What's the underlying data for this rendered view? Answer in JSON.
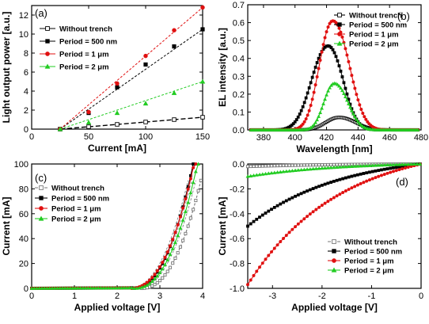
{
  "chart_data": [
    {
      "panel": "(a)",
      "type": "line",
      "xlabel": "Current [mA]",
      "ylabel": "Light output power [a.u.]",
      "xlim": [
        0,
        150
      ],
      "ylim": [
        0,
        13
      ],
      "xticks": [
        0,
        50,
        100,
        150
      ],
      "yticks": [
        0,
        2,
        4,
        6,
        8,
        10,
        12
      ],
      "legend_position": "top-left",
      "x": [
        25,
        50,
        75,
        100,
        125,
        150
      ],
      "series": [
        {
          "name": "Without trench",
          "color": "#000000",
          "marker": "open-square",
          "values": [
            0.0,
            0.25,
            0.5,
            0.75,
            1.0,
            1.25
          ]
        },
        {
          "name": "Period = 500 nm",
          "color": "#000000",
          "marker": "filled-square",
          "values": [
            0.0,
            1.7,
            4.4,
            6.8,
            8.7,
            10.5
          ]
        },
        {
          "name": "Period = 1 μm",
          "color": "#e01010",
          "marker": "filled-circle",
          "values": [
            0.0,
            1.8,
            4.8,
            7.7,
            10.4,
            12.8
          ]
        },
        {
          "name": "Period = 2 μm",
          "color": "#22cc22",
          "marker": "filled-triangle",
          "values": [
            0.0,
            0.7,
            1.7,
            2.7,
            3.8,
            5.0
          ]
        }
      ]
    },
    {
      "panel": "(b)",
      "type": "line",
      "xlabel": "Wavelength [nm]",
      "ylabel": "EL intensity [a.u.]",
      "xlim": [
        370,
        480
      ],
      "ylim": [
        0,
        0.7
      ],
      "xticks": [
        380,
        400,
        420,
        440,
        460,
        480
      ],
      "yticks": [
        0.0,
        0.1,
        0.2,
        0.3,
        0.4,
        0.5,
        0.6,
        0.7
      ],
      "legend_position": "top-right",
      "series": [
        {
          "name": "Without trench",
          "color": "#000000",
          "marker": "open-square",
          "peak_x": 428,
          "peak_y": 0.07,
          "width_left": 9,
          "width_right": 11
        },
        {
          "name": "Period = 500 nm",
          "color": "#000000",
          "marker": "filled-square",
          "peak_x": 421,
          "peak_y": 0.47,
          "width_left": 11,
          "width_right": 10
        },
        {
          "name": "Period = 1 μm",
          "color": "#e01010",
          "marker": "filled-circle",
          "peak_x": 424,
          "peak_y": 0.61,
          "width_left": 9,
          "width_right": 11
        },
        {
          "name": "Period = 2 μm",
          "color": "#22cc22",
          "marker": "filled-triangle",
          "peak_x": 425,
          "peak_y": 0.26,
          "width_left": 7,
          "width_right": 9
        }
      ]
    },
    {
      "panel": "(c)",
      "type": "line",
      "xlabel": "Applied voltage [V]",
      "ylabel": "Current [mA]",
      "xlim": [
        0,
        4
      ],
      "ylim": [
        0,
        100
      ],
      "xticks": [
        0,
        1,
        2,
        3,
        4
      ],
      "yticks": [
        0,
        20,
        40,
        60,
        80,
        100
      ],
      "legend_position": "top-left",
      "series": [
        {
          "name": "Without trench",
          "color": "#777777",
          "marker": "open-square",
          "dashed": true,
          "onset_voltage": 2.55,
          "full_current_voltage": 4.05
        },
        {
          "name": "Period = 500 nm",
          "color": "#000000",
          "marker": "filled-square",
          "onset_voltage": 2.35,
          "full_current_voltage": 3.78
        },
        {
          "name": "Period = 1 μm",
          "color": "#e01010",
          "marker": "filled-circle",
          "onset_voltage": 2.3,
          "full_current_voltage": 3.8
        },
        {
          "name": "Period = 2 μm",
          "color": "#22cc22",
          "marker": "filled-triangle",
          "onset_voltage": 2.4,
          "full_current_voltage": 3.88
        }
      ]
    },
    {
      "panel": "(d)",
      "type": "line",
      "xlabel": "Applied voltage [V]",
      "ylabel": "Current [mA]",
      "xlim": [
        -3.5,
        0
      ],
      "ylim": [
        -1.0,
        0
      ],
      "xticks": [
        -3,
        -2,
        -1,
        0
      ],
      "yticks": [
        -1.0,
        -0.8,
        -0.6,
        -0.4,
        -0.2,
        0.0
      ],
      "legend_position": "bottom-right",
      "series": [
        {
          "name": "Without trench",
          "color": "#777777",
          "marker": "open-square",
          "dashed": true,
          "current_at_min_voltage": -0.02
        },
        {
          "name": "Period = 500 nm",
          "color": "#000000",
          "marker": "filled-square",
          "current_at_min_voltage": -0.5
        },
        {
          "name": "Period = 1 μm",
          "color": "#e01010",
          "marker": "filled-circle",
          "current_at_min_voltage": -0.97
        },
        {
          "name": "Period = 2 μm",
          "color": "#22cc22",
          "marker": "filled-triangle",
          "current_at_min_voltage": -0.1
        }
      ]
    }
  ]
}
